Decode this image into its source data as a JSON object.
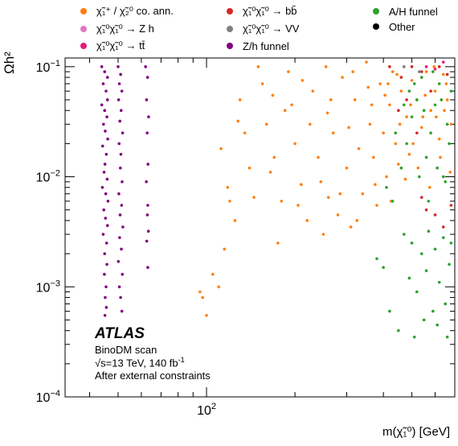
{
  "legend": {
    "items": [
      {
        "label": "χ̃₁⁺ / χ̃₂⁰ co. ann.",
        "color": "#ff7f0e"
      },
      {
        "label": "χ̃₁⁰χ̃₁⁰ → Z h",
        "color": "#e377c2"
      },
      {
        "label": "χ̃₁⁰χ̃₁⁰ → tt̄",
        "color": "#e6197a"
      },
      {
        "label": "χ̃₁⁰χ̃₁⁰ → bb̄",
        "color": "#d62728"
      },
      {
        "label": "χ̃₁⁰χ̃₁⁰ → VV",
        "color": "#7f7f7f"
      },
      {
        "label": "Z/h funnel",
        "color": "#800080"
      },
      {
        "label": "A/H funnel",
        "color": "#2ca02c"
      },
      {
        "label": "Other",
        "color": "#000000"
      }
    ]
  },
  "annotation": {
    "experiment": "ATLAS",
    "line1": "BinoDM scan",
    "line2_prefix": "√s=13 TeV, 140 fb",
    "line2_sup": "-1",
    "line3": "After external constraints"
  },
  "chart_data": {
    "type": "scatter",
    "xlabel": "m(χ̃₁⁰) [GeV]",
    "ylabel": "Ωh²",
    "xscale": "log",
    "yscale": "log",
    "xlim": [
      33,
      700
    ],
    "ylim": [
      0.0001,
      0.12
    ],
    "yticks": [
      {
        "value": 0.0001,
        "base": "10",
        "exp": "−4"
      },
      {
        "value": 0.001,
        "base": "10",
        "exp": "−3"
      },
      {
        "value": 0.01,
        "base": "10",
        "exp": "−2"
      },
      {
        "value": 0.1,
        "base": "10",
        "exp": "−1"
      }
    ],
    "xticks": [
      {
        "value": 100,
        "base": "10",
        "exp": "2"
      }
    ],
    "relic_line": 0.12,
    "series": [
      {
        "name": "Z/h funnel",
        "color": "#800080",
        "points": [
          [
            44,
            0.1
          ],
          [
            45,
            0.09
          ],
          [
            46,
            0.08
          ],
          [
            44.5,
            0.07
          ],
          [
            45.5,
            0.06
          ],
          [
            46,
            0.05
          ],
          [
            44,
            0.045
          ],
          [
            45,
            0.04
          ],
          [
            45.8,
            0.035
          ],
          [
            44.6,
            0.03
          ],
          [
            45.2,
            0.026
          ],
          [
            46.1,
            0.022
          ],
          [
            44.3,
            0.019
          ],
          [
            45.6,
            0.016
          ],
          [
            45.1,
            0.013
          ],
          [
            44.8,
            0.011
          ],
          [
            45.9,
            0.0095
          ],
          [
            44.2,
            0.008
          ],
          [
            45.4,
            0.007
          ],
          [
            46.2,
            0.006
          ],
          [
            44.7,
            0.005
          ],
          [
            45.3,
            0.0042
          ],
          [
            46,
            0.0036
          ],
          [
            44.5,
            0.003
          ],
          [
            45.7,
            0.0025
          ],
          [
            45,
            0.002
          ],
          [
            45.8,
            0.0016
          ],
          [
            44.9,
            0.0013
          ],
          [
            45.5,
            0.001
          ],
          [
            45.2,
            0.0008
          ],
          [
            45.6,
            0.00065
          ],
          [
            45.1,
            0.00055
          ],
          [
            50,
            0.1
          ],
          [
            51,
            0.085
          ],
          [
            50.5,
            0.07
          ],
          [
            51.5,
            0.06
          ],
          [
            50.2,
            0.05
          ],
          [
            51.2,
            0.04
          ],
          [
            50.7,
            0.032
          ],
          [
            51.8,
            0.025
          ],
          [
            50.4,
            0.02
          ],
          [
            51.1,
            0.016
          ],
          [
            50.9,
            0.012
          ],
          [
            51.6,
            0.009
          ],
          [
            50.3,
            0.007
          ],
          [
            51.4,
            0.0055
          ],
          [
            50.8,
            0.0045
          ],
          [
            51.9,
            0.0035
          ],
          [
            50.6,
            0.0028
          ],
          [
            51.3,
            0.0022
          ],
          [
            50.1,
            0.0017
          ],
          [
            51.7,
            0.0013
          ],
          [
            50.5,
            0.001
          ],
          [
            51,
            0.0008
          ],
          [
            51.5,
            0.0006
          ],
          [
            62,
            0.1
          ],
          [
            63,
            0.08
          ],
          [
            62.5,
            0.05
          ],
          [
            63.5,
            0.035
          ],
          [
            62.8,
            0.025
          ],
          [
            63.2,
            0.013
          ],
          [
            62.4,
            0.009
          ],
          [
            63.1,
            0.0055
          ],
          [
            62.9,
            0.0045
          ],
          [
            63.4,
            0.0032
          ],
          [
            62.6,
            0.0026
          ],
          [
            63.1,
            0.0015
          ]
        ]
      },
      {
        "name": "χ̃₁⁺ / χ̃₂⁰ co. ann.",
        "color": "#ff7f0e",
        "points": [
          [
            95,
            0.0009
          ],
          [
            97,
            0.0008
          ],
          [
            100,
            0.00055
          ],
          [
            105,
            0.0013
          ],
          [
            110,
            0.001
          ],
          [
            115,
            0.0022
          ],
          [
            118,
            0.008
          ],
          [
            120,
            0.006
          ],
          [
            125,
            0.004
          ],
          [
            130,
            0.05
          ],
          [
            135,
            0.025
          ],
          [
            140,
            0.012
          ],
          [
            150,
            0.1
          ],
          [
            155,
            0.07
          ],
          [
            160,
            0.03
          ],
          [
            170,
            0.015
          ],
          [
            175,
            0.0025
          ],
          [
            180,
            0.006
          ],
          [
            185,
            0.04
          ],
          [
            190,
            0.09
          ],
          [
            200,
            0.02
          ],
          [
            210,
            0.0085
          ],
          [
            220,
            0.004
          ],
          [
            230,
            0.06
          ],
          [
            240,
            0.015
          ],
          [
            250,
            0.003
          ],
          [
            255,
            0.1
          ],
          [
            260,
            0.0065
          ],
          [
            270,
            0.025
          ],
          [
            280,
            0.0045
          ],
          [
            290,
            0.08
          ],
          [
            300,
            0.012
          ],
          [
            310,
            0.0035
          ],
          [
            320,
            0.05
          ],
          [
            330,
            0.018
          ],
          [
            340,
            0.007
          ],
          [
            350,
            0.11
          ],
          [
            360,
            0.03
          ],
          [
            370,
            0.015
          ],
          [
            380,
            0.0055
          ],
          [
            390,
            0.07
          ],
          [
            400,
            0.025
          ],
          [
            410,
            0.01
          ],
          [
            420,
            0.045
          ],
          [
            430,
            0.09
          ],
          [
            440,
            0.02
          ],
          [
            450,
            0.013
          ],
          [
            460,
            0.06
          ],
          [
            470,
            0.1
          ],
          [
            480,
            0.035
          ],
          [
            490,
            0.016
          ],
          [
            500,
            0.075
          ],
          [
            520,
            0.05
          ],
          [
            540,
            0.028
          ],
          [
            560,
            0.09
          ],
          [
            580,
            0.04
          ],
          [
            600,
            0.06
          ],
          [
            620,
            0.022
          ],
          [
            640,
            0.085
          ],
          [
            660,
            0.05
          ],
          [
            680,
            0.03
          ],
          [
            195,
            0.045
          ],
          [
            225,
            0.03
          ],
          [
            265,
            0.05
          ],
          [
            315,
            0.09
          ],
          [
            365,
            0.045
          ],
          [
            415,
            0.07
          ],
          [
            455,
            0.03
          ],
          [
            505,
            0.02
          ],
          [
            555,
            0.055
          ],
          [
            605,
            0.035
          ],
          [
            655,
            0.07
          ],
          [
            145,
            0.0065
          ],
          [
            165,
            0.011
          ],
          [
            205,
            0.0055
          ],
          [
            245,
            0.009
          ],
          [
            285,
            0.007
          ],
          [
            325,
            0.004
          ],
          [
            375,
            0.0085
          ],
          [
            425,
            0.006
          ],
          [
            475,
            0.0095
          ],
          [
            525,
            0.012
          ],
          [
            575,
            0.008
          ],
          [
            625,
            0.015
          ],
          [
            675,
            0.011
          ],
          [
            112,
            0.018
          ],
          [
            128,
            0.032
          ],
          [
            168,
            0.055
          ],
          [
            212,
            0.075
          ],
          [
            258,
            0.038
          ],
          [
            305,
            0.028
          ],
          [
            355,
            0.065
          ],
          [
            405,
            0.055
          ],
          [
            445,
            0.085
          ],
          [
            495,
            0.045
          ],
          [
            545,
            0.035
          ],
          [
            595,
            0.1
          ],
          [
            645,
            0.04
          ]
        ]
      },
      {
        "name": "A/H funnel",
        "color": "#2ca02c",
        "points": [
          [
            380,
            0.0018
          ],
          [
            400,
            0.0015
          ],
          [
            420,
            0.0006
          ],
          [
            450,
            0.0004
          ],
          [
            470,
            0.003
          ],
          [
            490,
            0.0012
          ],
          [
            500,
            0.0025
          ],
          [
            510,
            0.00035
          ],
          [
            520,
            0.0009
          ],
          [
            540,
            0.002
          ],
          [
            550,
            0.0005
          ],
          [
            560,
            0.0014
          ],
          [
            570,
            0.0032
          ],
          [
            590,
            0.0006
          ],
          [
            600,
            0.0022
          ],
          [
            610,
            0.00045
          ],
          [
            620,
            0.0011
          ],
          [
            640,
            0.0028
          ],
          [
            650,
            0.0007
          ],
          [
            660,
            0.00035
          ],
          [
            670,
            0.0016
          ],
          [
            680,
            0.0025
          ],
          [
            430,
            0.006
          ],
          [
            460,
            0.012
          ],
          [
            480,
            0.02
          ],
          [
            500,
            0.035
          ],
          [
            520,
            0.05
          ],
          [
            540,
            0.08
          ],
          [
            560,
            0.015
          ],
          [
            580,
            0.025
          ],
          [
            600,
            0.045
          ],
          [
            620,
            0.07
          ],
          [
            640,
            0.01
          ],
          [
            660,
            0.03
          ],
          [
            680,
            0.06
          ],
          [
            470,
            0.045
          ],
          [
            510,
            0.07
          ],
          [
            550,
            0.04
          ],
          [
            590,
            0.09
          ],
          [
            630,
            0.05
          ],
          [
            670,
            0.02
          ],
          [
            410,
            0.008
          ],
          [
            440,
            0.025
          ],
          [
            490,
            0.06
          ],
          [
            530,
            0.01
          ],
          [
            570,
            0.006
          ],
          [
            610,
            0.012
          ],
          [
            650,
            0.009
          ]
        ]
      },
      {
        "name": "χ̃₁⁰χ̃₁⁰ → bb̄",
        "color": "#d62728",
        "points": [
          [
            420,
            0.1
          ],
          [
            460,
            0.08
          ],
          [
            500,
            0.1
          ],
          [
            540,
            0.09
          ],
          [
            580,
            0.06
          ],
          [
            620,
            0.1
          ],
          [
            660,
            0.085
          ],
          [
            450,
            0.04
          ],
          [
            520,
            0.025
          ],
          [
            560,
            0.005
          ],
          [
            600,
            0.0045
          ],
          [
            640,
            0.0035
          ],
          [
            680,
            0.0055
          ],
          [
            540,
            0.0065
          ],
          [
            480,
            0.05
          ]
        ]
      },
      {
        "name": "χ̃₁⁰χ̃₁⁰ → tt̄",
        "color": "#e6197a",
        "points": [
          [
            560,
            0.1
          ],
          [
            600,
            0.095
          ],
          [
            640,
            0.11
          ]
        ]
      },
      {
        "name": "χ̃₁⁰χ̃₁⁰ → Z h",
        "color": "#e377c2",
        "points": []
      },
      {
        "name": "χ̃₁⁰χ̃₁⁰ → VV",
        "color": "#7f7f7f",
        "points": [
          [
            470,
            0.1
          ],
          [
            530,
            0.09
          ]
        ]
      },
      {
        "name": "Other",
        "color": "#000000",
        "points": []
      }
    ]
  }
}
